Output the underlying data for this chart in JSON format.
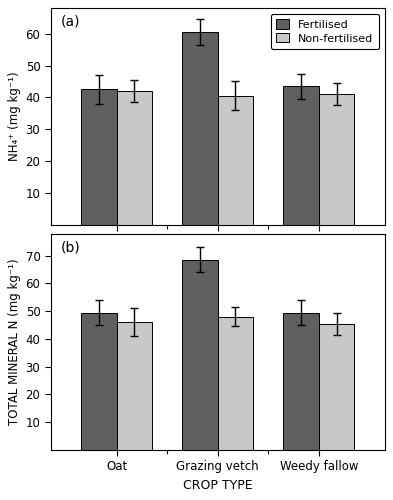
{
  "categories": [
    "Oat",
    "Grazing vetch",
    "Weedy fallow"
  ],
  "panel_a": {
    "label": "NH₄⁺ (mg kg⁻¹)",
    "fertilised": [
      42.5,
      60.5,
      43.5
    ],
    "non_fertilised": [
      42.0,
      40.5,
      41.0
    ],
    "err_fertilised": [
      4.5,
      4.0,
      4.0
    ],
    "err_non_fertilised": [
      3.5,
      4.5,
      3.5
    ],
    "ylim": [
      0,
      68
    ],
    "yticks": [
      10,
      20,
      30,
      40,
      50,
      60
    ],
    "panel_tag": "(a)"
  },
  "panel_b": {
    "label": "TOTAL MINERAL N (mg kg⁻¹)",
    "fertilised": [
      49.5,
      68.5,
      49.5
    ],
    "non_fertilised": [
      46.0,
      48.0,
      45.5
    ],
    "err_fertilised": [
      4.5,
      4.5,
      4.5
    ],
    "err_non_fertilised": [
      5.0,
      3.5,
      4.0
    ],
    "ylim": [
      0,
      78
    ],
    "yticks": [
      10,
      20,
      30,
      40,
      50,
      60,
      70
    ],
    "panel_tag": "(b)"
  },
  "color_fertilised": "#606060",
  "color_non_fertilised": "#c8c8c8",
  "bar_width": 0.35,
  "xlabel": "CROP TYPE",
  "legend_labels": [
    "Fertilised",
    "Non-fertilised"
  ],
  "edge_color": "#000000",
  "error_capsize": 3,
  "error_linewidth": 1.0
}
